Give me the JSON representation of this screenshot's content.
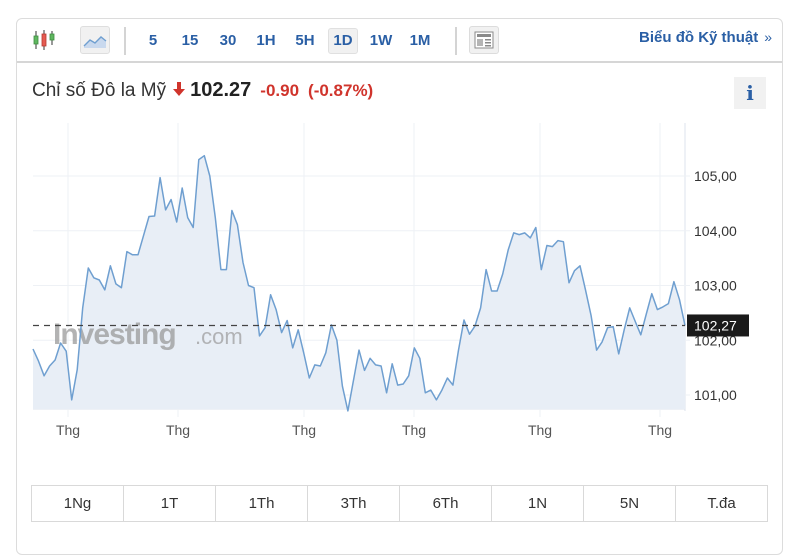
{
  "toolbar": {
    "chart_type_icons": [
      "candlestick-icon",
      "area-chart-icon"
    ],
    "intervals": [
      {
        "label": "5",
        "active": false
      },
      {
        "label": "15",
        "active": false
      },
      {
        "label": "30",
        "active": false
      },
      {
        "label": "1H",
        "active": false
      },
      {
        "label": "5H",
        "active": false
      },
      {
        "label": "1D",
        "active": true
      },
      {
        "label": "1W",
        "active": false
      },
      {
        "label": "1M",
        "active": false
      }
    ],
    "layout_icon": "layout-icon",
    "technical_link": "Biểu đồ Kỹ thuật",
    "technical_chevron": "»"
  },
  "quote": {
    "name": "Chỉ số Đô la Mỹ",
    "direction": "down",
    "price": "102.27",
    "change": "-0.90",
    "change_pct": "(-0.87%)"
  },
  "info_button": "i",
  "watermark": {
    "brand": "Investing",
    "suffix": ".com"
  },
  "colors": {
    "accent_blue": "#2a5fa5",
    "down_red": "#d0342c",
    "line": "#6f9fd0",
    "fill": "#e8eef6",
    "price_tag_bg": "#1a1a1a"
  },
  "chart_data": {
    "type": "area",
    "title": "Chỉ số Đô la Mỹ",
    "xlabel": "",
    "ylabel": "",
    "ylim": [
      100.75,
      106.0
    ],
    "y_ticks": [
      "105,00",
      "104,00",
      "103,00",
      "102,00",
      "101,00"
    ],
    "x_tick_labels": [
      "Thg",
      "Thg",
      "Thg",
      "Thg",
      "Thg",
      "Thg"
    ],
    "current_value_label": "102,27",
    "current_value": 102.27,
    "grid": true,
    "values": [
      101.84,
      101.62,
      101.35,
      101.53,
      101.64,
      101.95,
      101.8,
      100.91,
      101.46,
      102.59,
      103.32,
      103.14,
      103.1,
      102.92,
      103.36,
      103.03,
      102.96,
      103.62,
      103.56,
      103.56,
      103.91,
      104.26,
      104.27,
      104.97,
      104.38,
      104.57,
      104.16,
      104.78,
      104.24,
      104.06,
      105.3,
      105.37,
      105.0,
      104.24,
      103.29,
      103.29,
      104.37,
      104.11,
      103.42,
      103.0,
      102.96,
      102.08,
      102.23,
      102.83,
      102.56,
      102.14,
      102.36,
      101.86,
      102.19,
      101.77,
      101.31,
      101.55,
      101.53,
      101.77,
      102.28,
      102.0,
      101.16,
      100.71,
      101.27,
      101.82,
      101.45,
      101.67,
      101.55,
      101.53,
      101.04,
      101.57,
      101.18,
      101.2,
      101.35,
      101.86,
      101.67,
      101.04,
      101.09,
      100.91,
      101.09,
      101.31,
      101.18,
      101.82,
      102.37,
      102.11,
      102.26,
      102.59,
      103.29,
      102.9,
      102.9,
      103.21,
      103.65,
      103.96,
      103.93,
      103.96,
      103.87,
      104.06,
      103.29,
      103.73,
      103.71,
      103.82,
      103.8,
      103.05,
      103.27,
      103.36,
      102.92,
      102.45,
      101.82,
      101.97,
      102.23,
      102.25,
      101.75,
      102.19,
      102.59,
      102.34,
      102.1,
      102.48,
      102.85,
      102.56,
      102.61,
      102.67,
      103.07,
      102.74,
      102.27
    ]
  },
  "ranges": [
    "1Ng",
    "1T",
    "1Th",
    "3Th",
    "6Th",
    "1N",
    "5N",
    "T.đa"
  ]
}
